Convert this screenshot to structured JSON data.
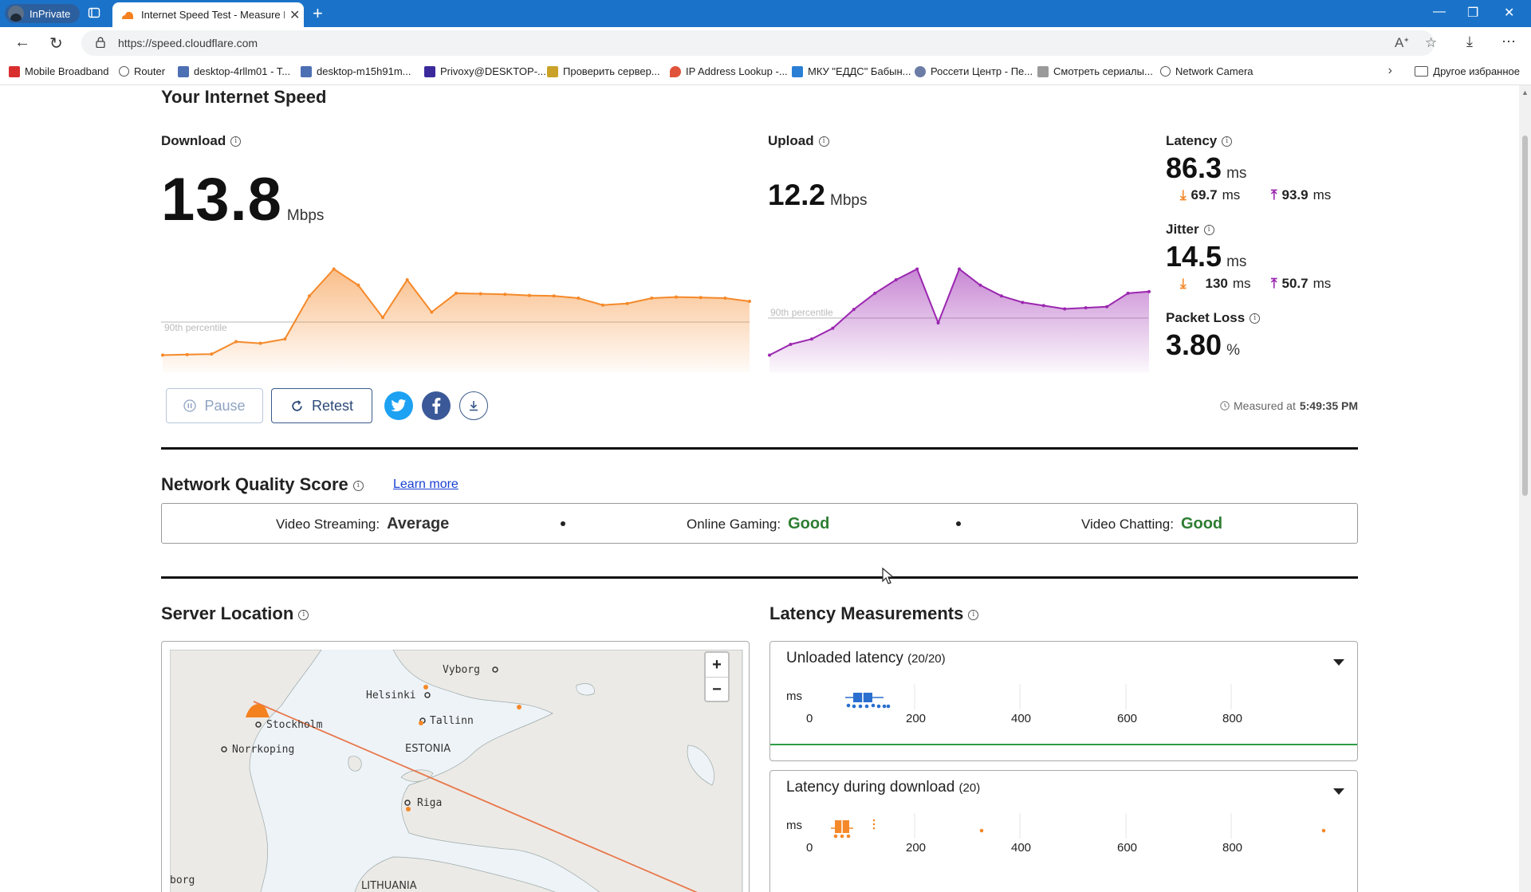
{
  "browser": {
    "inprivate_label": "InPrivate",
    "tab_title": "Internet Speed Test - Measure Ne",
    "url": "https://speed.cloudflare.com",
    "bookmarks": [
      {
        "label": "Mobile Broadband",
        "icon": "huawei-icon"
      },
      {
        "label": "Router",
        "icon": "globe-icon"
      },
      {
        "label": "desktop-4rllm01 - T...",
        "icon": "page-icon"
      },
      {
        "label": "desktop-m15h91m...",
        "icon": "page-icon"
      },
      {
        "label": "Privoxy@DESKTOP-...",
        "icon": "privoxy-icon"
      },
      {
        "label": "Проверить сервер...",
        "icon": "folder-icon"
      },
      {
        "label": "IP Address Lookup -...",
        "icon": "pin-icon"
      },
      {
        "label": "МКУ \"ЕДДС\" Бабын...",
        "icon": "vk-icon"
      },
      {
        "label": "Россети Центр - Пе...",
        "icon": "rosseti-icon"
      },
      {
        "label": "Смотреть сериалы...",
        "icon": "tv-icon"
      },
      {
        "label": "Network Camera",
        "icon": "globe-icon"
      }
    ],
    "other_favorites": "Другое избранное"
  },
  "speed": {
    "heading": "Your Internet Speed",
    "download_label": "Download",
    "download_value": "13.8",
    "download_unit": "Mbps",
    "upload_label": "Upload",
    "upload_value": "12.2",
    "upload_unit": "Mbps",
    "percentile_label": "90th percentile",
    "latency_label": "Latency",
    "latency_value": "86.3",
    "latency_down": "69.7",
    "latency_up": "93.9",
    "jitter_label": "Jitter",
    "jitter_value": "14.5",
    "jitter_down": "130",
    "jitter_up": "50.7",
    "ms": "ms",
    "packet_loss_label": "Packet Loss",
    "packet_loss_value": "3.80",
    "percent": "%"
  },
  "actions": {
    "pause": "Pause",
    "retest": "Retest",
    "measured_prefix": "Measured at",
    "measured_time": "5:49:35 PM"
  },
  "quality": {
    "heading": "Network Quality Score",
    "learn_more": "Learn more",
    "streaming_label": "Video Streaming:",
    "streaming_value": "Average",
    "gaming_label": "Online Gaming:",
    "gaming_value": "Good",
    "chatting_label": "Video Chatting:",
    "chatting_value": "Good",
    "colors": {
      "average": "#333333",
      "good": "#2e7d32"
    }
  },
  "server": {
    "heading": "Server Location",
    "map_labels": [
      "Vyborg",
      "Helsinki",
      "Stockholm",
      "Tallinn",
      "ESTONIA",
      "Norrkoping",
      "Riga",
      "LITHUANIA",
      "borg"
    ]
  },
  "latency_measurements": {
    "heading": "Latency Measurements",
    "unloaded_title": "Unloaded latency",
    "unloaded_count": "(20/20)",
    "download_title": "Latency during download",
    "download_count": "(20)",
    "axis_unit": "ms",
    "ticks": [
      "0",
      "200",
      "400",
      "600",
      "800"
    ]
  },
  "colors": {
    "download": "#f5892a",
    "upload": "#9b27b0",
    "unloaded": "#2a6fcf",
    "twitter": "#1da1f2",
    "facebook": "#3b5998"
  },
  "chart_data": [
    {
      "type": "area",
      "title": "Download",
      "ylabel": "Mbps",
      "reference_line": "90th percentile",
      "values": [
        2,
        2.1,
        2.2,
        4.5,
        4.2,
        5,
        13,
        18,
        15,
        9,
        16,
        10,
        13.5,
        13.4,
        13.3,
        13.1,
        13.0,
        12.6,
        11.3,
        11.6,
        12.6,
        12.8,
        12.7,
        12.6,
        12.0
      ]
    },
    {
      "type": "area",
      "title": "Upload",
      "ylabel": "Mbps",
      "reference_line": "90th percentile",
      "values": [
        2,
        4,
        5,
        7,
        10.5,
        13.5,
        16,
        18,
        8,
        18,
        15,
        13,
        11.8,
        11.2,
        10.6,
        10.8,
        11.0,
        13.5,
        13.8
      ]
    }
  ]
}
